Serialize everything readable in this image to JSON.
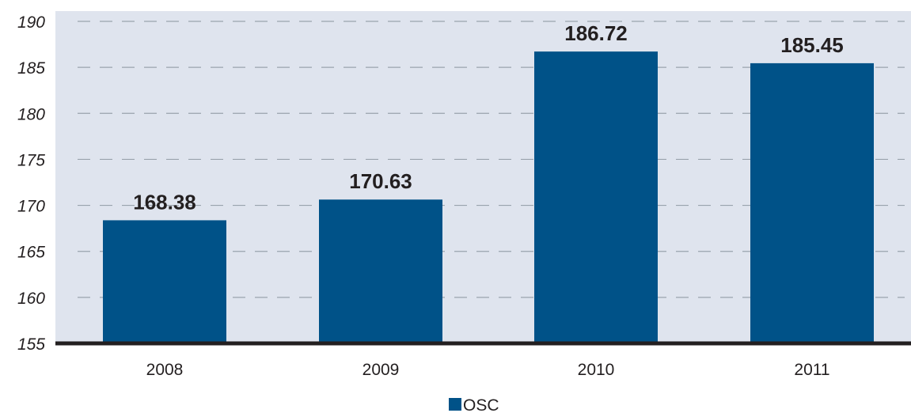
{
  "chart_data": {
    "type": "bar",
    "categories": [
      "2008",
      "2009",
      "2010",
      "2011"
    ],
    "series": [
      {
        "name": "OSC",
        "values": [
          168.38,
          170.63,
          186.72,
          185.45
        ]
      }
    ],
    "data_labels": [
      "168.38",
      "170.63",
      "186.72",
      "185.45"
    ],
    "yticks": [
      155,
      160,
      165,
      170,
      175,
      180,
      185,
      190
    ],
    "ylim": [
      155,
      190
    ],
    "title": "",
    "xlabel": "",
    "ylabel": "",
    "grid": true,
    "legend": "bottom-center",
    "colors": {
      "bar": "#005288",
      "plot_background": "#dfe4ee",
      "gridline": "#9aa3ad",
      "axis": "#231f20",
      "text": "#231f20"
    }
  }
}
